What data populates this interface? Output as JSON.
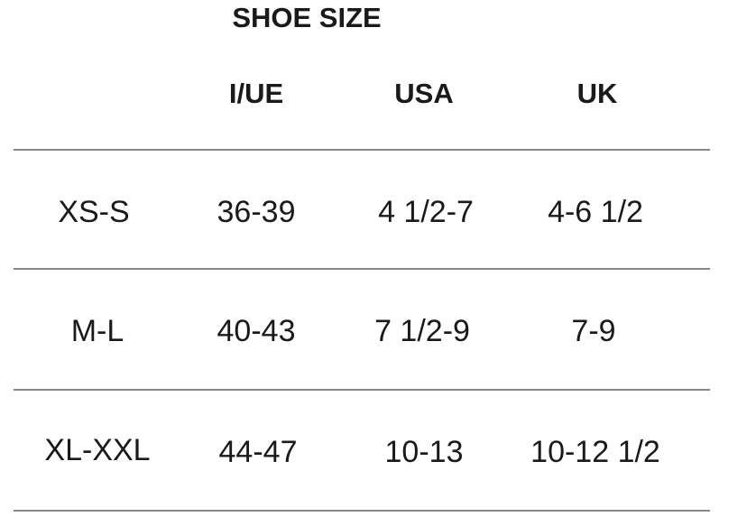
{
  "title": "SHOE SIZE",
  "columns": [
    "I/UE",
    "USA",
    "UK"
  ],
  "rows": [
    {
      "size": "XS-S",
      "values": [
        "36-39",
        "4 1/2-7",
        "4-6 1/2"
      ]
    },
    {
      "size": "M-L",
      "values": [
        "40-43",
        "7 1/2-9",
        "7-9"
      ]
    },
    {
      "size": "XL-XXL",
      "values": [
        "44-47",
        "10-13",
        "10-12 1/2"
      ]
    }
  ]
}
